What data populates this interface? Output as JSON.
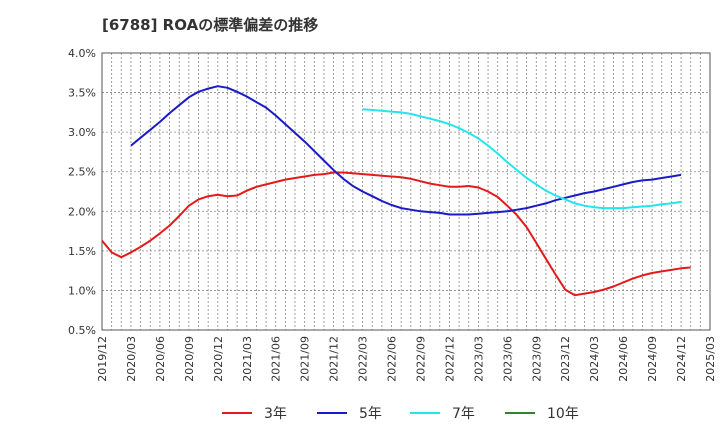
{
  "chart_data": {
    "type": "line",
    "title": "[6788]  ROAの標準偏差の推移",
    "xlabel": "",
    "ylabel": "",
    "x_ticks": [
      "2019/12",
      "2020/03",
      "2020/06",
      "2020/09",
      "2020/12",
      "2021/03",
      "2021/06",
      "2021/09",
      "2021/12",
      "2022/03",
      "2022/06",
      "2022/09",
      "2022/12",
      "2023/03",
      "2023/06",
      "2023/09",
      "2023/12",
      "2024/03",
      "2024/06",
      "2024/09",
      "2024/12",
      "2025/03"
    ],
    "y_ticks": [
      "0.5%",
      "1.0%",
      "1.5%",
      "2.0%",
      "2.5%",
      "3.0%",
      "3.5%",
      "4.0%"
    ],
    "ylim": [
      0.5,
      4.0
    ],
    "grid": true,
    "legend_position": "bottom",
    "series": [
      {
        "name": "3年",
        "color": "#e31a1c",
        "points": [
          [
            "2019/12",
            1.63
          ],
          [
            "2020/01",
            1.48
          ],
          [
            "2020/02",
            1.42
          ],
          [
            "2020/03",
            1.48
          ],
          [
            "2020/04",
            1.55
          ],
          [
            "2020/05",
            1.63
          ],
          [
            "2020/06",
            1.72
          ],
          [
            "2020/07",
            1.82
          ],
          [
            "2020/08",
            1.94
          ],
          [
            "2020/09",
            2.07
          ],
          [
            "2020/10",
            2.15
          ],
          [
            "2020/11",
            2.19
          ],
          [
            "2020/12",
            2.21
          ],
          [
            "2021/01",
            2.19
          ],
          [
            "2021/02",
            2.2
          ],
          [
            "2021/03",
            2.26
          ],
          [
            "2021/04",
            2.31
          ],
          [
            "2021/05",
            2.34
          ],
          [
            "2021/06",
            2.37
          ],
          [
            "2021/07",
            2.4
          ],
          [
            "2021/08",
            2.42
          ],
          [
            "2021/09",
            2.44
          ],
          [
            "2021/10",
            2.46
          ],
          [
            "2021/11",
            2.47
          ],
          [
            "2021/12",
            2.49
          ],
          [
            "2022/01",
            2.49
          ],
          [
            "2022/02",
            2.48
          ],
          [
            "2022/03",
            2.47
          ],
          [
            "2022/04",
            2.46
          ],
          [
            "2022/05",
            2.45
          ],
          [
            "2022/06",
            2.44
          ],
          [
            "2022/07",
            2.43
          ],
          [
            "2022/08",
            2.41
          ],
          [
            "2022/09",
            2.38
          ],
          [
            "2022/10",
            2.35
          ],
          [
            "2022/11",
            2.33
          ],
          [
            "2022/12",
            2.31
          ],
          [
            "2023/01",
            2.31
          ],
          [
            "2023/02",
            2.32
          ],
          [
            "2023/03",
            2.3
          ],
          [
            "2023/04",
            2.25
          ],
          [
            "2023/05",
            2.18
          ],
          [
            "2023/06",
            2.07
          ],
          [
            "2023/07",
            1.95
          ],
          [
            "2023/08",
            1.8
          ],
          [
            "2023/09",
            1.6
          ],
          [
            "2023/10",
            1.4
          ],
          [
            "2023/11",
            1.2
          ],
          [
            "2023/12",
            1.01
          ],
          [
            "2024/01",
            0.94
          ],
          [
            "2024/02",
            0.96
          ],
          [
            "2024/03",
            0.98
          ],
          [
            "2024/04",
            1.01
          ],
          [
            "2024/05",
            1.05
          ],
          [
            "2024/06",
            1.1
          ],
          [
            "2024/07",
            1.15
          ],
          [
            "2024/08",
            1.19
          ],
          [
            "2024/09",
            1.22
          ],
          [
            "2024/10",
            1.24
          ],
          [
            "2024/11",
            1.26
          ],
          [
            "2024/12",
            1.28
          ],
          [
            "2025/01",
            1.29
          ]
        ]
      },
      {
        "name": "5年",
        "color": "#1a1ac8",
        "points": [
          [
            "2020/03",
            2.83
          ],
          [
            "2020/04",
            2.93
          ],
          [
            "2020/05",
            3.03
          ],
          [
            "2020/06",
            3.13
          ],
          [
            "2020/07",
            3.24
          ],
          [
            "2020/08",
            3.34
          ],
          [
            "2020/09",
            3.44
          ],
          [
            "2020/10",
            3.51
          ],
          [
            "2020/11",
            3.55
          ],
          [
            "2020/12",
            3.58
          ],
          [
            "2021/01",
            3.56
          ],
          [
            "2021/02",
            3.51
          ],
          [
            "2021/03",
            3.45
          ],
          [
            "2021/04",
            3.38
          ],
          [
            "2021/05",
            3.31
          ],
          [
            "2021/06",
            3.21
          ],
          [
            "2021/07",
            3.1
          ],
          [
            "2021/08",
            2.99
          ],
          [
            "2021/09",
            2.88
          ],
          [
            "2021/10",
            2.76
          ],
          [
            "2021/11",
            2.64
          ],
          [
            "2021/12",
            2.52
          ],
          [
            "2022/01",
            2.41
          ],
          [
            "2022/02",
            2.32
          ],
          [
            "2022/03",
            2.25
          ],
          [
            "2022/04",
            2.19
          ],
          [
            "2022/05",
            2.13
          ],
          [
            "2022/06",
            2.08
          ],
          [
            "2022/07",
            2.04
          ],
          [
            "2022/08",
            2.02
          ],
          [
            "2022/09",
            2.0
          ],
          [
            "2022/10",
            1.99
          ],
          [
            "2022/11",
            1.98
          ],
          [
            "2022/12",
            1.96
          ],
          [
            "2023/01",
            1.96
          ],
          [
            "2023/02",
            1.96
          ],
          [
            "2023/03",
            1.97
          ],
          [
            "2023/04",
            1.98
          ],
          [
            "2023/05",
            1.99
          ],
          [
            "2023/06",
            2.0
          ],
          [
            "2023/07",
            2.02
          ],
          [
            "2023/08",
            2.04
          ],
          [
            "2023/09",
            2.07
          ],
          [
            "2023/10",
            2.1
          ],
          [
            "2023/11",
            2.14
          ],
          [
            "2023/12",
            2.17
          ],
          [
            "2024/01",
            2.2
          ],
          [
            "2024/02",
            2.23
          ],
          [
            "2024/03",
            2.25
          ],
          [
            "2024/04",
            2.28
          ],
          [
            "2024/05",
            2.31
          ],
          [
            "2024/06",
            2.34
          ],
          [
            "2024/07",
            2.37
          ],
          [
            "2024/08",
            2.39
          ],
          [
            "2024/09",
            2.4
          ],
          [
            "2024/10",
            2.42
          ],
          [
            "2024/11",
            2.44
          ],
          [
            "2024/12",
            2.46
          ]
        ]
      },
      {
        "name": "7年",
        "color": "#22e5ee",
        "points": [
          [
            "2022/03",
            3.29
          ],
          [
            "2022/04",
            3.28
          ],
          [
            "2022/05",
            3.27
          ],
          [
            "2022/06",
            3.26
          ],
          [
            "2022/07",
            3.25
          ],
          [
            "2022/08",
            3.23
          ],
          [
            "2022/09",
            3.2
          ],
          [
            "2022/10",
            3.17
          ],
          [
            "2022/11",
            3.14
          ],
          [
            "2022/12",
            3.1
          ],
          [
            "2023/01",
            3.05
          ],
          [
            "2023/02",
            2.99
          ],
          [
            "2023/03",
            2.92
          ],
          [
            "2023/04",
            2.83
          ],
          [
            "2023/05",
            2.73
          ],
          [
            "2023/06",
            2.62
          ],
          [
            "2023/07",
            2.52
          ],
          [
            "2023/08",
            2.42
          ],
          [
            "2023/09",
            2.34
          ],
          [
            "2023/10",
            2.26
          ],
          [
            "2023/11",
            2.2
          ],
          [
            "2023/12",
            2.15
          ],
          [
            "2024/01",
            2.1
          ],
          [
            "2024/02",
            2.07
          ],
          [
            "2024/03",
            2.05
          ],
          [
            "2024/04",
            2.04
          ],
          [
            "2024/05",
            2.04
          ],
          [
            "2024/06",
            2.04
          ],
          [
            "2024/07",
            2.05
          ],
          [
            "2024/08",
            2.06
          ],
          [
            "2024/09",
            2.07
          ],
          [
            "2024/10",
            2.09
          ],
          [
            "2024/11",
            2.1
          ],
          [
            "2024/12",
            2.12
          ]
        ]
      },
      {
        "name": "10年",
        "color": "#2a8a2a",
        "points": []
      }
    ]
  }
}
